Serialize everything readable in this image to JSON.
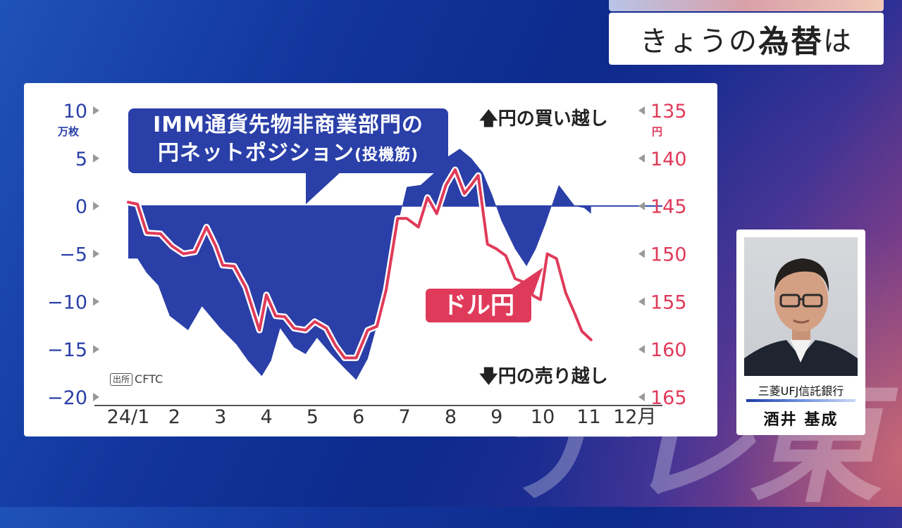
{
  "topic": {
    "prefix": "きょうの",
    "emphasis": "為替",
    "suffix": "は"
  },
  "watermark": "テレ東",
  "chart": {
    "callout_line1": "IMM通貨先物非商業部門の",
    "callout_line2": "円ネットポジション",
    "callout_line2_small": "(投機筋)",
    "dollar_yen_label": "ドル円",
    "annotation_top": "円の買い越し",
    "annotation_bottom": "円の売り越し",
    "source_box": "出所",
    "source_text": "CFTC",
    "left_unit": "万枚",
    "right_unit": "円"
  },
  "chart_data": {
    "type": "area",
    "left_axis": {
      "ticks": [
        10,
        5,
        0,
        -5,
        -10,
        -15,
        -20
      ],
      "tick_labels": [
        "10",
        "5",
        "0",
        "−5",
        "−10",
        "−15",
        "−20"
      ],
      "ylim": [
        -20,
        10
      ]
    },
    "right_axis": {
      "ticks": [
        135,
        140,
        145,
        150,
        155,
        160,
        165
      ],
      "tick_labels": [
        "135",
        "140",
        "145",
        "150",
        "155",
        "160",
        "165"
      ],
      "ylim": [
        165,
        135
      ],
      "inverted": true
    },
    "x_ticks": [
      1,
      2,
      3,
      4,
      5,
      6,
      7,
      8,
      9,
      10,
      11,
      12
    ],
    "x_tick_labels": [
      "24/1",
      "2",
      "3",
      "4",
      "5",
      "6",
      "7",
      "8",
      "9",
      "10",
      "11",
      "12月"
    ],
    "xlim": [
      1,
      12.6
    ],
    "colors": {
      "position": "#2a3fa8",
      "usdjpy": "#e03a5a"
    },
    "series": [
      {
        "name": "IMM通貨先物非商業部門の円ネットポジション(投機筋)",
        "axis": "left",
        "points": [
          [
            1.0,
            -5.5
          ],
          [
            1.2,
            -5.5
          ],
          [
            1.4,
            -7.0
          ],
          [
            1.65,
            -8.3
          ],
          [
            1.9,
            -11.5
          ],
          [
            2.3,
            -13.0
          ],
          [
            2.6,
            -10.5
          ],
          [
            3.0,
            -12.8
          ],
          [
            3.35,
            -14.5
          ],
          [
            3.6,
            -16.2
          ],
          [
            3.9,
            -17.8
          ],
          [
            4.1,
            -16.2
          ],
          [
            4.3,
            -12.8
          ],
          [
            4.6,
            -14.8
          ],
          [
            4.85,
            -15.5
          ],
          [
            5.1,
            -13.8
          ],
          [
            5.4,
            -15.5
          ],
          [
            5.7,
            -17.0
          ],
          [
            5.95,
            -18.2
          ],
          [
            6.2,
            -16.0
          ],
          [
            6.4,
            -12.5
          ],
          [
            6.6,
            -8.0
          ],
          [
            6.85,
            -2.0
          ],
          [
            7.05,
            2.0
          ],
          [
            7.35,
            2.2
          ],
          [
            7.65,
            3.5
          ],
          [
            7.95,
            5.2
          ],
          [
            8.2,
            6.0
          ],
          [
            8.45,
            5.0
          ],
          [
            8.7,
            3.5
          ],
          [
            8.9,
            1.2
          ],
          [
            9.1,
            -1.5
          ],
          [
            9.4,
            -4.5
          ],
          [
            9.65,
            -6.3
          ],
          [
            9.85,
            -4.5
          ],
          [
            10.05,
            -2.0
          ],
          [
            10.35,
            2.2
          ],
          [
            10.7,
            0.0
          ],
          [
            10.9,
            -0.2
          ],
          [
            11.05,
            -0.8
          ]
        ]
      },
      {
        "name": "ドル円",
        "axis": "right",
        "points": [
          [
            1.0,
            144.6
          ],
          [
            1.2,
            144.8
          ],
          [
            1.4,
            147.8
          ],
          [
            1.7,
            147.9
          ],
          [
            1.95,
            149.2
          ],
          [
            2.2,
            150.0
          ],
          [
            2.45,
            149.8
          ],
          [
            2.7,
            147.2
          ],
          [
            2.9,
            149.2
          ],
          [
            3.05,
            151.2
          ],
          [
            3.3,
            151.3
          ],
          [
            3.55,
            153.5
          ],
          [
            3.85,
            158.0
          ],
          [
            4.0,
            154.3
          ],
          [
            4.2,
            156.5
          ],
          [
            4.4,
            156.6
          ],
          [
            4.6,
            157.8
          ],
          [
            4.85,
            158.0
          ],
          [
            5.05,
            157.1
          ],
          [
            5.3,
            157.8
          ],
          [
            5.5,
            159.6
          ],
          [
            5.7,
            160.9
          ],
          [
            5.95,
            160.9
          ],
          [
            6.2,
            158.0
          ],
          [
            6.4,
            157.6
          ],
          [
            6.6,
            153.8
          ],
          [
            6.85,
            146.3
          ],
          [
            7.05,
            146.3
          ],
          [
            7.3,
            147.2
          ],
          [
            7.5,
            144.1
          ],
          [
            7.7,
            145.8
          ],
          [
            7.9,
            142.8
          ],
          [
            8.1,
            141.2
          ],
          [
            8.3,
            143.7
          ],
          [
            8.45,
            142.8
          ],
          [
            8.6,
            141.8
          ],
          [
            8.8,
            149.0
          ],
          [
            9.0,
            149.5
          ],
          [
            9.2,
            150.2
          ],
          [
            9.4,
            152.6
          ],
          [
            9.6,
            153.0
          ],
          [
            9.8,
            154.4
          ],
          [
            9.95,
            154.8
          ],
          [
            10.1,
            150.0
          ],
          [
            10.3,
            150.5
          ],
          [
            10.5,
            154.1
          ],
          [
            10.7,
            156.3
          ],
          [
            10.85,
            158.1
          ],
          [
            11.05,
            159.0
          ]
        ]
      }
    ]
  },
  "person": {
    "org": "三菱UFJ信託銀行",
    "name": "酒井 基成"
  }
}
